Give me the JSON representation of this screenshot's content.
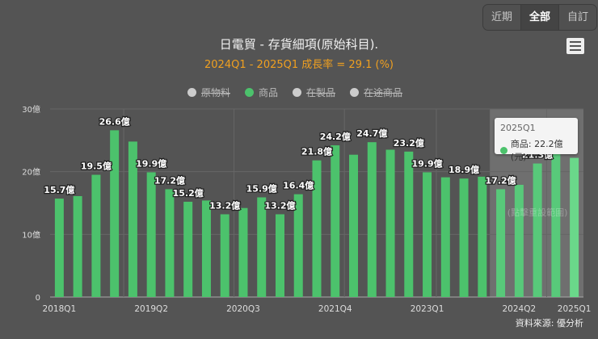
{
  "range_buttons": [
    {
      "label": "近期",
      "active": false
    },
    {
      "label": "全部",
      "active": true
    },
    {
      "label": "自訂",
      "active": false
    }
  ],
  "menu_icon": "hamburger-menu-icon",
  "chart_data": {
    "type": "bar",
    "title": "日電貿 - 存貨細項(原始科目).",
    "subtitle": "2024Q1 - 2025Q1 成長率 = 29.1 (%)",
    "legend": [
      {
        "name": "原物料",
        "color": "#cccccc",
        "visible": false
      },
      {
        "name": "商品",
        "color": "#4cc26c",
        "visible": true
      },
      {
        "name": "在製品",
        "color": "#cccccc",
        "visible": false
      },
      {
        "name": "在途商品",
        "color": "#cccccc",
        "visible": false
      }
    ],
    "legend_position": "top",
    "categories": [
      "2018Q1",
      "2018Q2",
      "2018Q3",
      "2018Q4",
      "2019Q1",
      "2019Q2",
      "2019Q3",
      "2019Q4",
      "2020Q1",
      "2020Q2",
      "2020Q3",
      "2020Q4",
      "2021Q1",
      "2021Q2",
      "2021Q3",
      "2021Q4",
      "2022Q1",
      "2022Q2",
      "2022Q3",
      "2022Q4",
      "2023Q1",
      "2023Q2",
      "2023Q3",
      "2023Q4",
      "2024Q1",
      "2024Q2",
      "2024Q3",
      "2024Q4",
      "2025Q1"
    ],
    "xtick_labels": [
      "2018Q1",
      "2019Q2",
      "2020Q3",
      "2021Q4",
      "2023Q1",
      "2024Q2",
      "2025Q1"
    ],
    "series": [
      {
        "name": "商品",
        "unit": "億",
        "color": "#4cc26c",
        "values": [
          15.7,
          16.1,
          19.5,
          26.6,
          24.8,
          19.9,
          17.2,
          15.2,
          15.4,
          13.2,
          14.2,
          15.9,
          13.2,
          16.4,
          21.8,
          24.2,
          22.7,
          24.7,
          23.5,
          23.2,
          19.9,
          19.1,
          18.9,
          19.2,
          17.2,
          17.9,
          21.3,
          23.0,
          22.2
        ],
        "labels": [
          "15.7億",
          null,
          "19.5億",
          "26.6億",
          null,
          "19.9億",
          "17.2億",
          "15.2億",
          null,
          "13.2億",
          null,
          "15.9億",
          "13.2億",
          "16.4億",
          "21.8億",
          "24.2億",
          null,
          "24.7億",
          null,
          "23.2億",
          "19.9億",
          null,
          "18.9億",
          null,
          "17.2億",
          null,
          "21.3億",
          null,
          null
        ]
      }
    ],
    "yticks": [
      {
        "value": 0,
        "label": "0"
      },
      {
        "value": 10,
        "label": "10億"
      },
      {
        "value": 20,
        "label": "20億"
      },
      {
        "value": 30,
        "label": "30億"
      }
    ],
    "ylim": [
      0,
      30
    ],
    "grid": true,
    "selected_range": [
      "2024Q1",
      "2025Q1"
    ],
    "reset_hint": "(點擊重設範圍)",
    "tooltip": {
      "category": "2025Q1",
      "text": "商品: 22.2億(元)"
    },
    "source": "資料來源: 優分析"
  }
}
